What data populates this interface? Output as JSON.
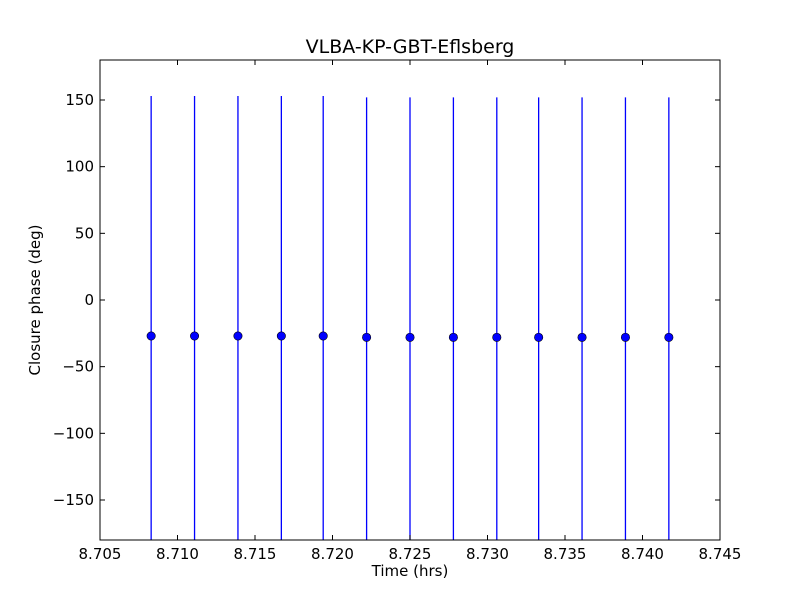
{
  "chart_data": {
    "type": "scatter",
    "title": "VLBA-KP-GBT-Eflsberg",
    "xlabel": "Time (hrs)",
    "ylabel": "Closure phase (deg)",
    "xlim": [
      8.705,
      8.745
    ],
    "ylim": [
      -180,
      180
    ],
    "xticks": [
      8.705,
      8.71,
      8.715,
      8.72,
      8.725,
      8.73,
      8.735,
      8.74,
      8.745
    ],
    "xtick_labels": [
      "8.705",
      "8.710",
      "8.715",
      "8.720",
      "8.725",
      "8.730",
      "8.735",
      "8.740",
      "8.745"
    ],
    "yticks": [
      150,
      100,
      50,
      0,
      -50,
      -100,
      -150
    ],
    "ytick_labels": [
      "150",
      "100",
      "50",
      "0",
      "−50",
      "−100",
      "−150"
    ],
    "grid": false,
    "marker_color": "#0000ff",
    "series": [
      {
        "x": [
          8.7083,
          8.7111,
          8.7139,
          8.7167,
          8.7194,
          8.7222,
          8.725,
          8.7278,
          8.7306,
          8.7333,
          8.7361,
          8.7389,
          8.7417
        ],
        "y": [
          -27,
          -27,
          -27,
          -27,
          -27,
          -28,
          -28,
          -28,
          -28,
          -28,
          -28,
          -28,
          -28
        ],
        "error": [
          180,
          180,
          180,
          180,
          180,
          180,
          180,
          180,
          180,
          180,
          180,
          180,
          180
        ]
      }
    ]
  }
}
